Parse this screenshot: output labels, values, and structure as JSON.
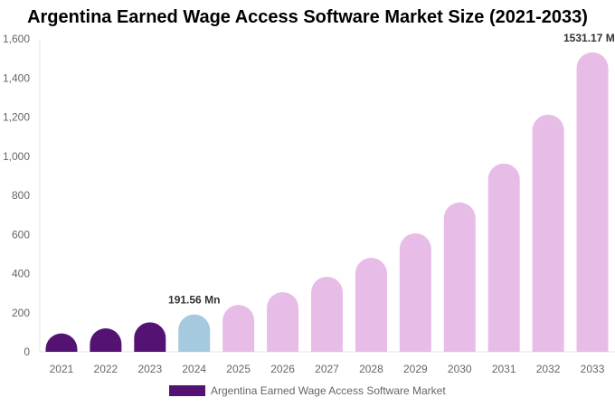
{
  "chart_data": {
    "type": "bar",
    "title": "Argentina Earned Wage Access Software Market Size (2021-2033)",
    "categories": [
      "2021",
      "2022",
      "2023",
      "2024",
      "2025",
      "2026",
      "2027",
      "2028",
      "2029",
      "2030",
      "2031",
      "2032",
      "2033"
    ],
    "series": [
      {
        "name": "Argentina Earned Wage Access Software Market",
        "values": [
          94,
          120,
          151,
          191.56,
          240,
          305,
          384,
          481,
          606,
          764,
          963,
          1213,
          1531.17
        ]
      }
    ],
    "data_labels": {
      "3": "191.56 Mn",
      "12": "1531.17 Mn"
    },
    "ylim": [
      0,
      1600
    ],
    "yticks": [
      "0",
      "200",
      "400",
      "600",
      "800",
      "1,000",
      "1,200",
      "1,400",
      "1,600"
    ],
    "xlabel": "",
    "ylabel": "",
    "grid": false,
    "legend": "bottom",
    "colors": {
      "historical": "#541373",
      "current": "#a5cadf",
      "forecast": "#e7bde8"
    }
  }
}
